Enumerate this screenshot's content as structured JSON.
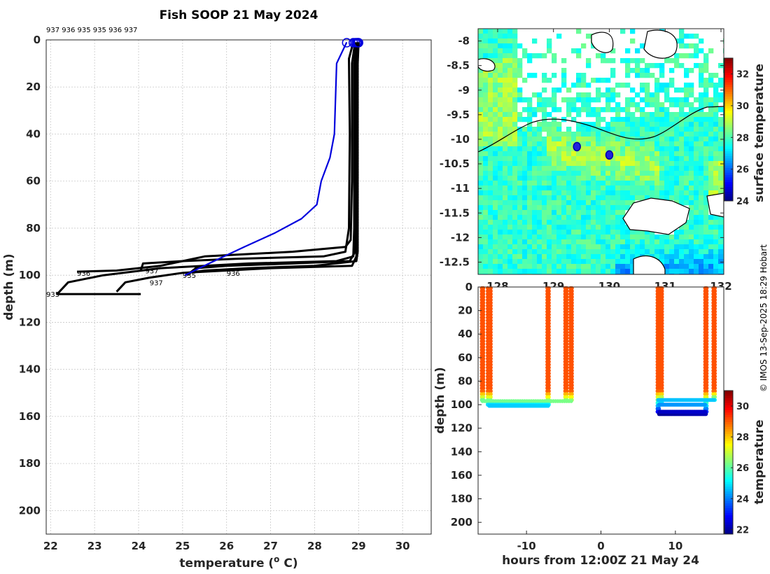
{
  "chart_data": [
    {
      "id": "profiles",
      "type": "line",
      "title": "Fish SOOP 21 May 2024",
      "xlabel": "temperature (",
      "xlabel_sup": "o",
      "xlabel_end": " C)",
      "ylabel": "depth (m)",
      "xlim": [
        21.9,
        30.65
      ],
      "ylim": [
        0,
        210
      ],
      "xticks": [
        22,
        23,
        24,
        25,
        26,
        27,
        28,
        29,
        30
      ],
      "yticks": [
        0,
        20,
        40,
        60,
        80,
        100,
        120,
        140,
        160,
        180,
        200
      ],
      "header_ids": "937 936 935 935 936 937",
      "series": [
        {
          "name": "937",
          "color": "#0000dd",
          "marker_t": 28.73,
          "label_t": null,
          "label_d": null,
          "points": [
            [
              28.73,
              1
            ],
            [
              28.5,
              10
            ],
            [
              28.45,
              40
            ],
            [
              28.35,
              50
            ],
            [
              28.15,
              60
            ],
            [
              28.05,
              70
            ],
            [
              27.7,
              76
            ],
            [
              27.1,
              82
            ],
            [
              26.4,
              88
            ],
            [
              25.6,
              95
            ],
            [
              25.05,
              100
            ]
          ]
        },
        {
          "name": "937",
          "color": "#000000",
          "marker_t": 28.88,
          "label_t": 24.15,
          "label_d": 98,
          "points": [
            [
              28.88,
              1
            ],
            [
              28.78,
              8
            ],
            [
              28.8,
              40
            ],
            [
              28.78,
              80
            ],
            [
              28.7,
              90
            ],
            [
              28.2,
              92
            ],
            [
              26.2,
              93
            ],
            [
              25.0,
              94
            ],
            [
              24.1,
              95
            ],
            [
              24.05,
              98
            ]
          ]
        },
        {
          "name": "936",
          "color": "#000000",
          "marker_t": 28.92,
          "label_t": 22.6,
          "label_d": 99,
          "points": [
            [
              28.92,
              1
            ],
            [
              28.85,
              10
            ],
            [
              28.85,
              60
            ],
            [
              28.82,
              85
            ],
            [
              28.7,
              88
            ],
            [
              27.5,
              90
            ],
            [
              25.5,
              92
            ],
            [
              24.5,
              96
            ],
            [
              23.5,
              98
            ],
            [
              22.6,
              98.5
            ]
          ]
        },
        {
          "name": "935",
          "color": "#000000",
          "marker_t": 28.95,
          "label_t": 21.9,
          "label_d": 108,
          "points": [
            [
              28.95,
              1
            ],
            [
              28.9,
              10
            ],
            [
              28.9,
              80
            ],
            [
              28.88,
              92
            ],
            [
              28.5,
              94
            ],
            [
              26.5,
              95
            ],
            [
              24.5,
              97
            ],
            [
              23.2,
              100
            ],
            [
              22.4,
              103
            ],
            [
              22.15,
              108
            ],
            [
              23.3,
              108
            ],
            [
              24.05,
              108
            ]
          ]
        },
        {
          "name": "935",
          "color": "#000000",
          "marker_t": 28.97,
          "label_t": 25.0,
          "label_d": 100,
          "points": [
            [
              28.97,
              1
            ],
            [
              28.92,
              10
            ],
            [
              28.92,
              90
            ],
            [
              28.8,
              94
            ],
            [
              27.5,
              95
            ],
            [
              26.0,
              96
            ],
            [
              25.3,
              97
            ],
            [
              25.1,
              100
            ]
          ]
        },
        {
          "name": "936",
          "color": "#000000",
          "marker_t": 29.0,
          "label_t": 26.0,
          "label_d": 99,
          "points": [
            [
              29.0,
              1
            ],
            [
              28.98,
              10
            ],
            [
              28.98,
              90
            ],
            [
              28.95,
              94
            ],
            [
              28.0,
              96
            ],
            [
              26.5,
              97
            ],
            [
              25.5,
              98
            ],
            [
              25.1,
              99
            ]
          ]
        },
        {
          "name": "937",
          "color": "#000000",
          "marker_t": 28.99,
          "label_t": 24.25,
          "label_d": 103,
          "points": [
            [
              28.99,
              1
            ],
            [
              28.95,
              10
            ],
            [
              28.95,
              92
            ],
            [
              28.85,
              96
            ],
            [
              27.0,
              97
            ],
            [
              25.0,
              99
            ],
            [
              24.25,
              101
            ],
            [
              23.7,
              103
            ],
            [
              23.5,
              107
            ]
          ]
        }
      ]
    },
    {
      "id": "sst_map",
      "type": "heatmap",
      "xticks": [
        "128",
        "129",
        "130",
        "131",
        "132"
      ],
      "yticks": [
        "-8",
        "-8.5",
        "-9",
        "-9.5",
        "-10",
        "-10.5",
        "-11",
        "-11.5",
        "-12",
        "-12.5"
      ],
      "xlim": [
        127.65,
        132.05
      ],
      "ylim": [
        -12.75,
        -7.75
      ],
      "colorbar_label": "surface temperature",
      "colorbar_ticks": [
        "24",
        "26",
        "28",
        "30",
        "32"
      ],
      "colorbar_range": [
        24,
        33
      ],
      "cast_positions": [
        [
          129.42,
          -10.15
        ],
        [
          130.0,
          -10.32
        ]
      ]
    },
    {
      "id": "depth_time",
      "type": "scatter",
      "xlabel": "hours from 12:00Z 21 May 24",
      "ylabel": "depth (m)",
      "xlim": [
        -16.5,
        16.5
      ],
      "ylim": [
        0,
        210
      ],
      "xticks": [
        -10,
        0,
        10
      ],
      "yticks": [
        0,
        20,
        40,
        60,
        80,
        100,
        120,
        140,
        160,
        180,
        200
      ],
      "colorbar_label": "temperature",
      "colorbar_ticks": [
        "22",
        "24",
        "26",
        "28",
        "30"
      ],
      "colorbar_range": [
        21.7,
        31
      ],
      "casts": [
        {
          "time_start": -16.0,
          "time_end": -15.8,
          "bottom": 98,
          "bottom_temp": 25.5
        },
        {
          "time_start": -15.2,
          "time_end": -14.8,
          "bottom": 100,
          "bottom_temp": 25.2
        },
        {
          "time_start": -7.2,
          "time_end": -7.0,
          "bottom": 100,
          "bottom_temp": 25.6
        },
        {
          "time_start": -4.8,
          "time_end": -4.6,
          "bottom": 98,
          "bottom_temp": 26.0
        },
        {
          "time_start": -4.1,
          "time_end": -3.9,
          "bottom": 97,
          "bottom_temp": 26.5
        },
        {
          "time_start": 7.6,
          "time_end": 7.8,
          "bottom": 108,
          "bottom_temp": 22.1
        },
        {
          "time_start": 8.0,
          "time_end": 8.2,
          "bottom": 100,
          "bottom_temp": 24.3
        },
        {
          "time_start": 14.0,
          "time_end": 14.2,
          "bottom": 108,
          "bottom_temp": 22.6
        },
        {
          "time_start": 15.1,
          "time_end": 15.3,
          "bottom": 97,
          "bottom_temp": 24.8
        }
      ]
    }
  ],
  "credit": "© IMOS 13-Sep-2025 18:29 Hobart"
}
